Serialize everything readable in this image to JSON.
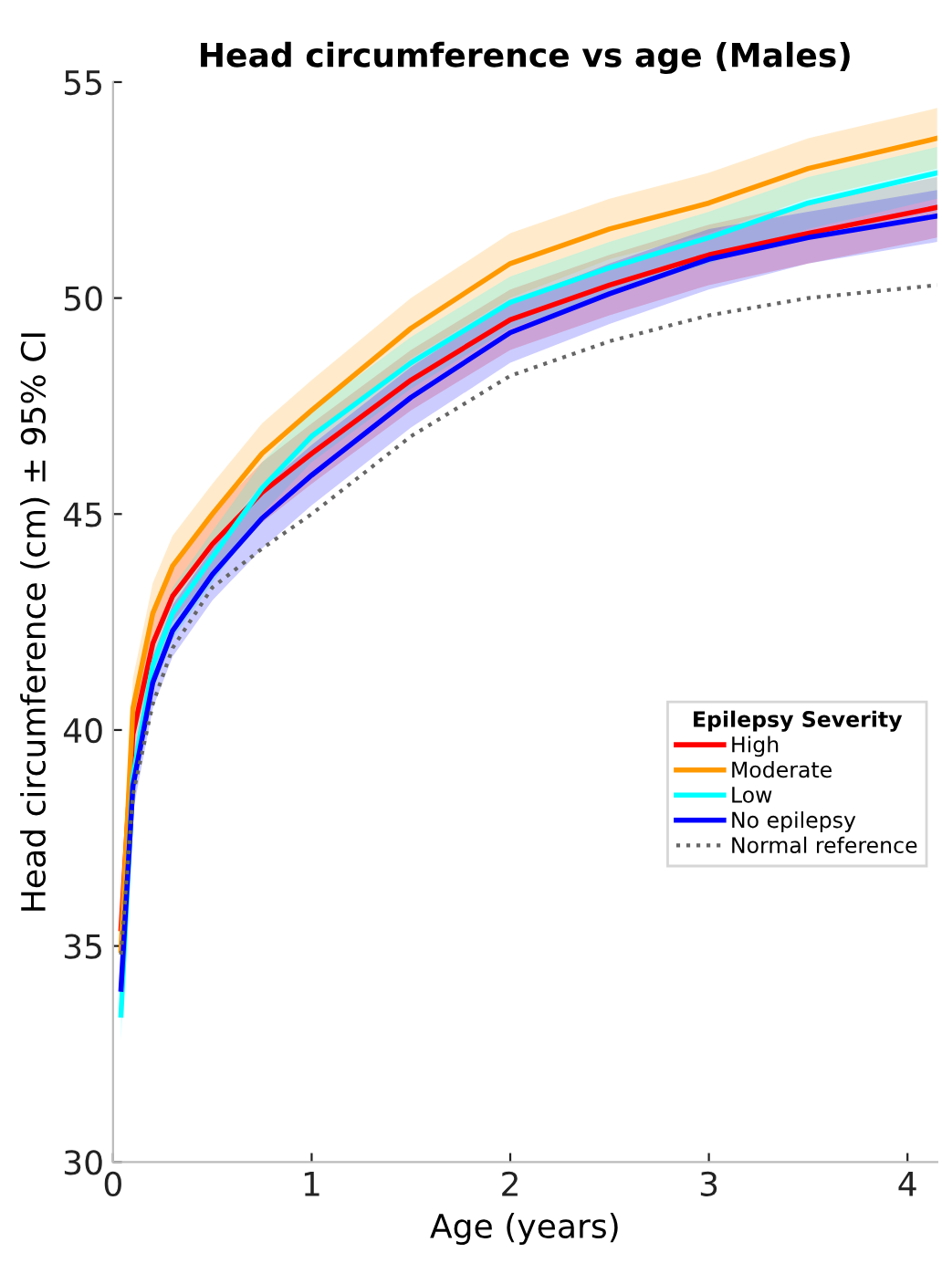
{
  "chart_data": {
    "type": "line",
    "title": "Head circumference vs age (Males)",
    "xlabel": "Age (years)",
    "ylabel": "Head circumference (cm) ± 95% CI",
    "legend_title": "Epilepsy Severity",
    "legend": "right",
    "grid": false,
    "marker": "none",
    "x": [
      0.04,
      0.1,
      0.2,
      0.3,
      0.5,
      0.75,
      1,
      1.5,
      2,
      2.5,
      3,
      3.5,
      4.15
    ],
    "xlim": [
      0,
      4.15
    ],
    "ylim": [
      30,
      55
    ],
    "xticks": [
      0,
      1,
      2,
      3,
      4
    ],
    "yticks": [
      30,
      35,
      40,
      45,
      50,
      55
    ],
    "series": [
      {
        "name": "High",
        "color": "#ff0000",
        "values": [
          35.4,
          39.9,
          42.0,
          43.1,
          44.3,
          45.5,
          46.4,
          48.1,
          49.5,
          50.3,
          51.0,
          51.5,
          52.1
        ],
        "lower": [
          34.8,
          39.3,
          41.4,
          42.5,
          43.6,
          44.8,
          45.7,
          47.4,
          48.8,
          49.6,
          50.3,
          50.8,
          51.4
        ],
        "upper": [
          36.0,
          40.5,
          42.6,
          43.7,
          45.0,
          46.2,
          47.1,
          48.8,
          50.2,
          51.0,
          51.7,
          52.2,
          52.8
        ]
      },
      {
        "name": "Moderate",
        "color": "#ff9900",
        "values": [
          34.9,
          40.5,
          42.7,
          43.8,
          45.0,
          46.4,
          47.4,
          49.3,
          50.8,
          51.6,
          52.2,
          53.0,
          53.7
        ],
        "lower": [
          34.2,
          39.8,
          42.0,
          43.1,
          44.3,
          45.7,
          46.7,
          48.6,
          50.0,
          50.9,
          51.5,
          52.3,
          53.0
        ],
        "upper": [
          35.6,
          41.2,
          43.4,
          44.5,
          45.7,
          47.1,
          48.1,
          50.0,
          51.5,
          52.3,
          52.9,
          53.7,
          54.4
        ]
      },
      {
        "name": "Low",
        "color": "#00ffff",
        "values": [
          33.4,
          38.9,
          41.5,
          42.7,
          44.0,
          45.6,
          46.8,
          48.5,
          49.9,
          50.7,
          51.4,
          52.2,
          52.9
        ],
        "lower": [
          32.8,
          38.3,
          40.9,
          42.1,
          43.4,
          45.0,
          46.2,
          47.9,
          49.3,
          50.1,
          50.8,
          51.6,
          52.3
        ],
        "upper": [
          34.0,
          39.5,
          42.1,
          43.3,
          44.6,
          46.2,
          47.4,
          49.1,
          50.5,
          51.3,
          52.0,
          52.8,
          53.5
        ]
      },
      {
        "name": "No epilepsy",
        "color": "#0000ff",
        "values": [
          34.0,
          38.7,
          41.1,
          42.3,
          43.6,
          44.9,
          45.9,
          47.7,
          49.2,
          50.1,
          50.9,
          51.4,
          51.9
        ],
        "lower": [
          33.4,
          38.1,
          40.5,
          41.7,
          43.0,
          44.2,
          45.2,
          47.0,
          48.5,
          49.4,
          50.2,
          50.8,
          51.3
        ],
        "upper": [
          34.6,
          39.3,
          41.7,
          42.9,
          44.2,
          45.6,
          46.6,
          48.4,
          49.9,
          50.8,
          51.6,
          52.0,
          52.5
        ]
      },
      {
        "name": "Normal reference",
        "color": "#666666",
        "line_style": "dotted",
        "values": [
          34.8,
          38.5,
          40.6,
          41.9,
          43.3,
          44.2,
          45.0,
          46.8,
          48.2,
          49.0,
          49.6,
          50.0,
          50.3
        ]
      }
    ]
  }
}
